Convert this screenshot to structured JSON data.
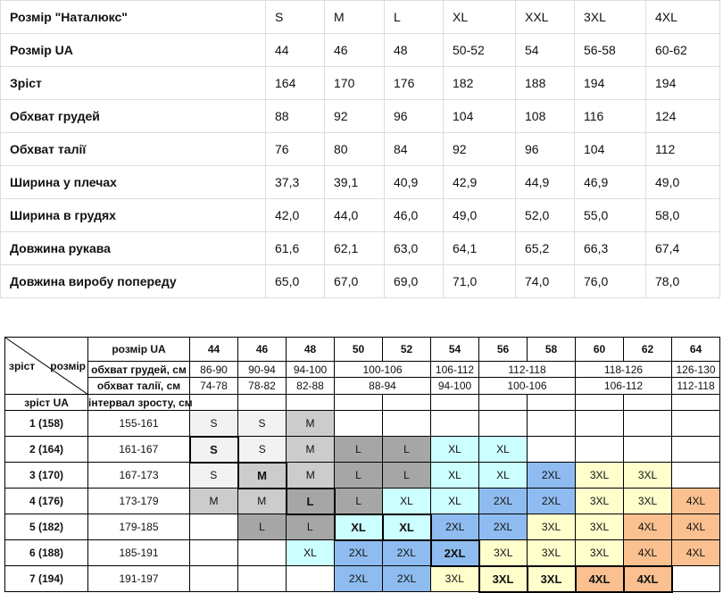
{
  "size_table": {
    "header": [
      "Розмір \"Наталюкс\"",
      "S",
      "M",
      "L",
      "XL",
      "XXL",
      "3XL",
      "4XL"
    ],
    "rows": [
      [
        "Розмір UA",
        "44",
        "46",
        "48",
        "50-52",
        "54",
        "56-58",
        "60-62"
      ],
      [
        "Зріст",
        "164",
        "170",
        "176",
        "182",
        "188",
        "194",
        "194"
      ],
      [
        "Обхват грудей",
        "88",
        "92",
        "96",
        "104",
        "108",
        "116",
        "124"
      ],
      [
        "Обхват талії",
        "76",
        "80",
        "84",
        "92",
        "96",
        "104",
        "112"
      ],
      [
        "Ширина у плечах",
        "37,3",
        "39,1",
        "40,9",
        "42,9",
        "44,9",
        "46,9",
        "49,0"
      ],
      [
        "Ширина в грудях",
        "42,0",
        "44,0",
        "46,0",
        "49,0",
        "52,0",
        "55,0",
        "58,0"
      ],
      [
        "Довжина рукава",
        "61,6",
        "62,1",
        "63,0",
        "64,1",
        "65,2",
        "66,3",
        "67,4"
      ],
      [
        "Довжина виробу попереду",
        "65,0",
        "67,0",
        "69,0",
        "71,0",
        "74,0",
        "76,0",
        "78,0"
      ]
    ]
  },
  "grid_table": {
    "corner": {
      "height": "зріст",
      "size": "розмір"
    },
    "size_label": "розмір UA",
    "sizes": [
      "44",
      "46",
      "48",
      "50",
      "52",
      "54",
      "56",
      "58",
      "60",
      "62",
      "64"
    ],
    "chest_label": "обхват грудей, см",
    "chest": [
      {
        "label": "86-90",
        "span": 1
      },
      {
        "label": "90-94",
        "span": 1
      },
      {
        "label": "94-100",
        "span": 1
      },
      {
        "label": "100-106",
        "span": 2
      },
      {
        "label": "106-112",
        "span": 1
      },
      {
        "label": "112-118",
        "span": 2
      },
      {
        "label": "118-126",
        "span": 2
      },
      {
        "label": "126-130",
        "span": 1
      }
    ],
    "waist_label": "обхват талії, см",
    "waist": [
      {
        "label": "74-78",
        "span": 1
      },
      {
        "label": "78-82",
        "span": 1
      },
      {
        "label": "82-88",
        "span": 1
      },
      {
        "label": "88-94",
        "span": 2
      },
      {
        "label": "94-100",
        "span": 1
      },
      {
        "label": "100-106",
        "span": 2
      },
      {
        "label": "106-112",
        "span": 2
      },
      {
        "label": "112-118",
        "span": 1
      }
    ],
    "height_label": "зріст UA",
    "interval_label": "інтервал зросту, см",
    "colors": {
      "S": "#f2f2f2",
      "M": "#cccccc",
      "L": "#a6a6a6",
      "XL": "#ccffff",
      "2XL": "#8fbcf0",
      "3XL": "#ffffcc",
      "4XL": "#fac090"
    },
    "rows": [
      {
        "height": "1 (158)",
        "interval": "155-161",
        "cells": [
          "S",
          "S",
          "M",
          null,
          null,
          null,
          null,
          null,
          null,
          null,
          null
        ],
        "bold": []
      },
      {
        "height": "2 (164)",
        "interval": "161-167",
        "cells": [
          "S",
          "S",
          "M",
          "L",
          "L",
          "XL",
          "XL",
          null,
          null,
          null,
          null
        ],
        "bold": [
          0
        ]
      },
      {
        "height": "3 (170)",
        "interval": "167-173",
        "cells": [
          "S",
          "M",
          "M",
          "L",
          "L",
          "XL",
          "XL",
          "2XL",
          "3XL",
          "3XL",
          null
        ],
        "bold": [
          1
        ]
      },
      {
        "height": "4 (176)",
        "interval": "173-179",
        "cells": [
          "M",
          "M",
          "L",
          "L",
          "XL",
          "XL",
          "2XL",
          "2XL",
          "3XL",
          "3XL",
          "4XL"
        ],
        "bold": [
          2
        ]
      },
      {
        "height": "5 (182)",
        "interval": "179-185",
        "cells": [
          null,
          "L",
          "L",
          "XL",
          "XL",
          "2XL",
          "2XL",
          "3XL",
          "3XL",
          "4XL",
          "4XL"
        ],
        "bold": [
          3,
          4
        ]
      },
      {
        "height": "6 (188)",
        "interval": "185-191",
        "cells": [
          null,
          null,
          "XL",
          "2XL",
          "2XL",
          "2XL",
          "3XL",
          "3XL",
          "3XL",
          "4XL",
          "4XL"
        ],
        "bold": [
          5
        ]
      },
      {
        "height": "7 (194)",
        "interval": "191-197",
        "cells": [
          null,
          null,
          null,
          "2XL",
          "2XL",
          "3XL",
          "3XL",
          "3XL",
          "4XL",
          "4XL",
          null
        ],
        "bold": [
          6,
          7,
          8,
          9
        ]
      }
    ]
  }
}
